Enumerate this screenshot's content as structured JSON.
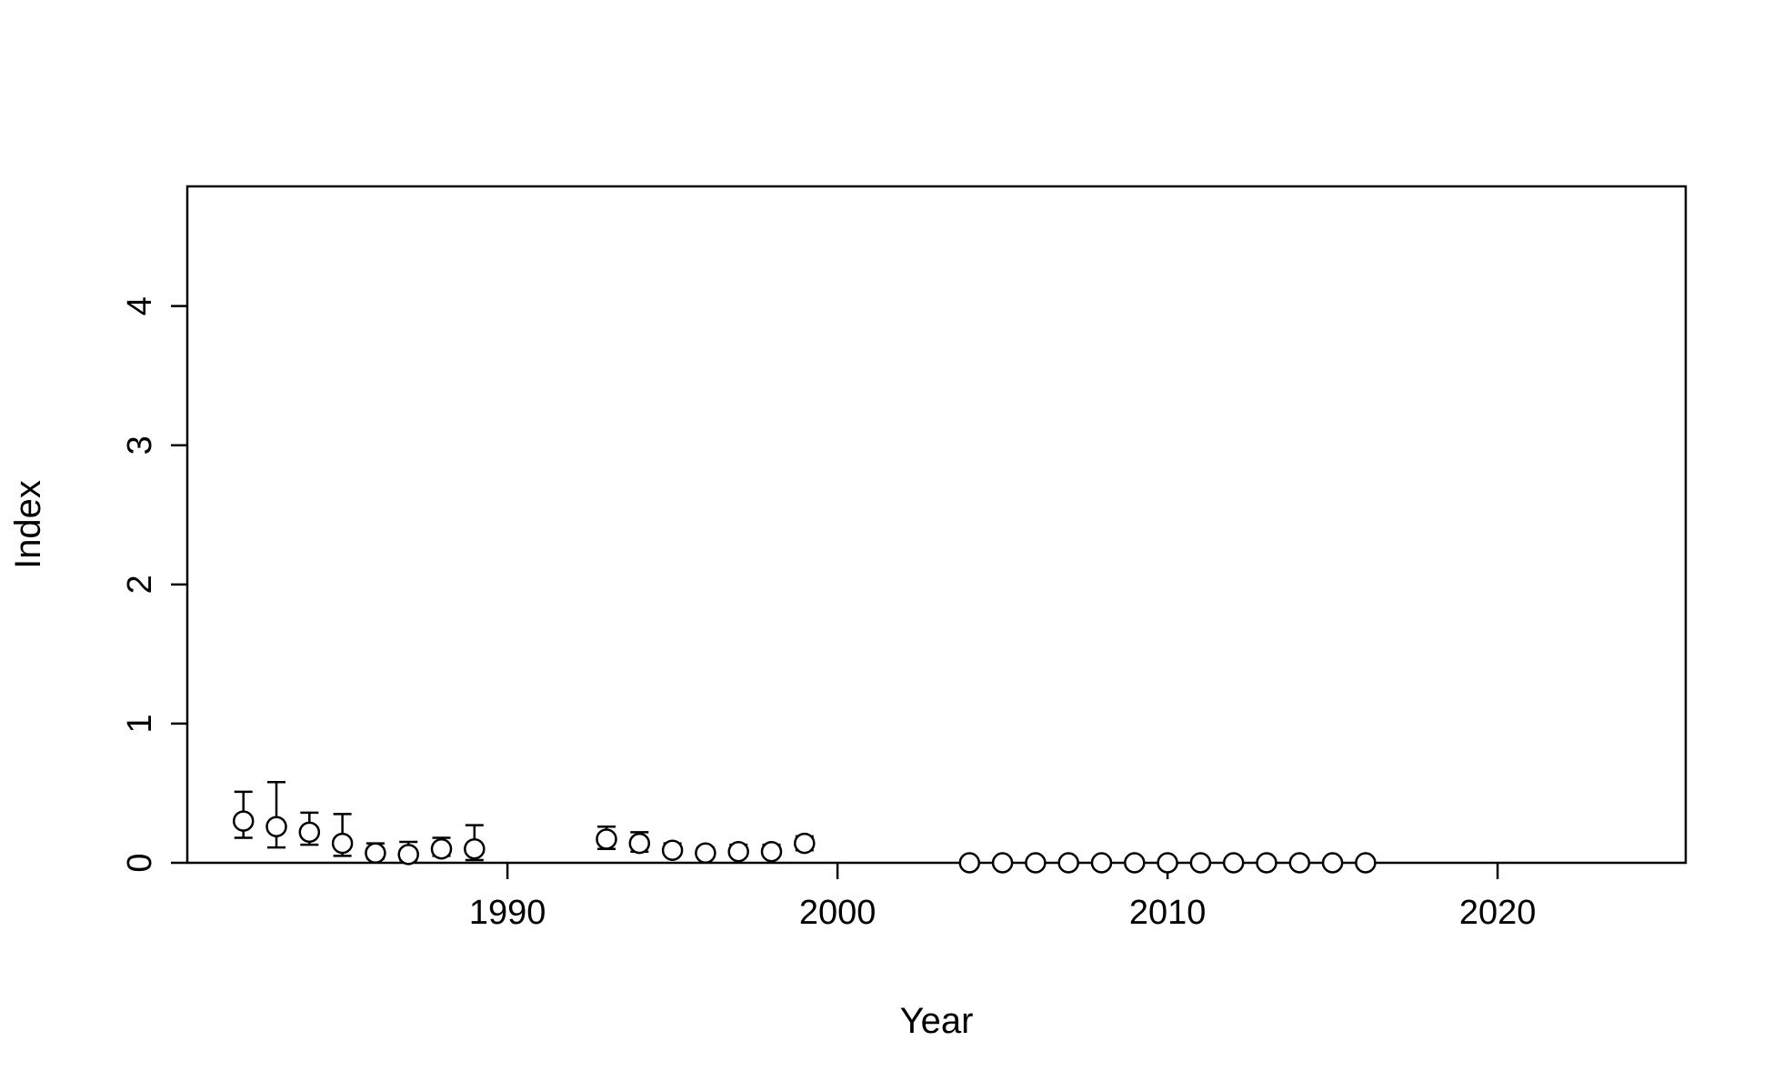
{
  "chart_data": {
    "type": "scatter",
    "title": "",
    "xlabel": "Year",
    "ylabel": "Index",
    "xlim": [
      1980.3,
      2025.7
    ],
    "ylim": [
      0,
      4.86
    ],
    "x_ticks": [
      1990,
      2000,
      2010,
      2020
    ],
    "y_ticks": [
      0,
      1,
      2,
      3,
      4
    ],
    "grid": false,
    "legend": "none",
    "marker": "open-circle",
    "error_bars": true,
    "colors": {
      "axis": "#000000",
      "marker_fill": "#ffffff",
      "marker_stroke": "#000000"
    },
    "series": [
      {
        "points": [
          {
            "x": 1982,
            "y": 0.3,
            "lo": 0.18,
            "hi": 0.51
          },
          {
            "x": 1983,
            "y": 0.26,
            "lo": 0.11,
            "hi": 0.58
          },
          {
            "x": 1984,
            "y": 0.22,
            "lo": 0.13,
            "hi": 0.36
          },
          {
            "x": 1985,
            "y": 0.14,
            "lo": 0.05,
            "hi": 0.35
          },
          {
            "x": 1986,
            "y": 0.07,
            "lo": 0.03,
            "hi": 0.14
          },
          {
            "x": 1987,
            "y": 0.06,
            "lo": 0.02,
            "hi": 0.15
          },
          {
            "x": 1988,
            "y": 0.1,
            "lo": 0.05,
            "hi": 0.18
          },
          {
            "x": 1989,
            "y": 0.1,
            "lo": 0.02,
            "hi": 0.27
          },
          {
            "x": 1993,
            "y": 0.17,
            "lo": 0.1,
            "hi": 0.26
          },
          {
            "x": 1994,
            "y": 0.14,
            "lo": 0.08,
            "hi": 0.22
          },
          {
            "x": 1995,
            "y": 0.09,
            "lo": 0.06,
            "hi": 0.14
          },
          {
            "x": 1996,
            "y": 0.07,
            "lo": 0.05,
            "hi": 0.11
          },
          {
            "x": 1997,
            "y": 0.08,
            "lo": 0.05,
            "hi": 0.13
          },
          {
            "x": 1998,
            "y": 0.08,
            "lo": 0.05,
            "hi": 0.13
          },
          {
            "x": 1999,
            "y": 0.14,
            "lo": 0.09,
            "hi": 0.19
          },
          {
            "x": 2004,
            "y": 0.0,
            "lo": 0.0,
            "hi": 0.0
          },
          {
            "x": 2005,
            "y": 0.0,
            "lo": 0.0,
            "hi": 0.0
          },
          {
            "x": 2006,
            "y": 0.0,
            "lo": 0.0,
            "hi": 0.0
          },
          {
            "x": 2007,
            "y": 0.0,
            "lo": 0.0,
            "hi": 0.0
          },
          {
            "x": 2008,
            "y": 0.0,
            "lo": 0.0,
            "hi": 0.0
          },
          {
            "x": 2009,
            "y": 0.0,
            "lo": 0.0,
            "hi": 0.0
          },
          {
            "x": 2010,
            "y": 0.0,
            "lo": 0.0,
            "hi": 0.0
          },
          {
            "x": 2011,
            "y": 0.0,
            "lo": 0.0,
            "hi": 0.0
          },
          {
            "x": 2012,
            "y": 0.0,
            "lo": 0.0,
            "hi": 0.0
          },
          {
            "x": 2013,
            "y": 0.0,
            "lo": 0.0,
            "hi": 0.0
          },
          {
            "x": 2014,
            "y": 0.0,
            "lo": 0.0,
            "hi": 0.0
          },
          {
            "x": 2015,
            "y": 0.0,
            "lo": 0.0,
            "hi": 0.0
          },
          {
            "x": 2016,
            "y": 0.0,
            "lo": 0.0,
            "hi": 0.0
          }
        ]
      }
    ]
  }
}
